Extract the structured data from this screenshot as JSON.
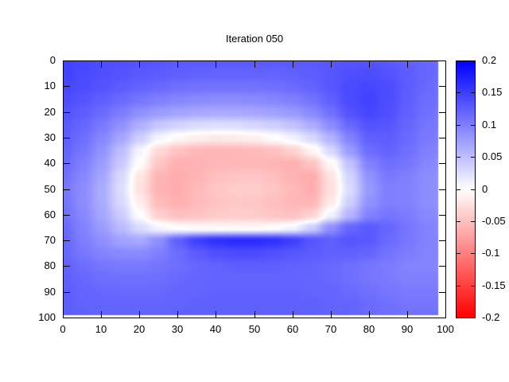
{
  "title": "Iteration 050",
  "colors": {
    "background": "#ffffff",
    "frame": "#000000",
    "text": "#000000",
    "palette_positive_max": "#0000ff",
    "palette_zero": "#ffffff",
    "palette_negative_max": "#ff0000"
  },
  "chart_data": {
    "type": "heatmap",
    "title": "Iteration 050",
    "xlabel": "",
    "ylabel": "",
    "x_range": [
      0,
      100
    ],
    "y_range": [
      0,
      100
    ],
    "y_axis_inverted": true,
    "grid": false,
    "x_tick_values": [
      0,
      10,
      20,
      30,
      40,
      50,
      60,
      70,
      80,
      90,
      100
    ],
    "x_tick_labels": [
      "0",
      "10",
      "20",
      "30",
      "40",
      "50",
      "60",
      "70",
      "80",
      "90",
      "100"
    ],
    "y_tick_values": [
      0,
      10,
      20,
      30,
      40,
      50,
      60,
      70,
      80,
      90,
      100
    ],
    "y_tick_labels": [
      "0",
      "10",
      "20",
      "30",
      "40",
      "50",
      "60",
      "70",
      "80",
      "90",
      "100"
    ],
    "data_extent": {
      "x_max_filled": 98.2,
      "y_max_filled": 99.2
    },
    "colorbar": {
      "position": "right",
      "min": -0.2,
      "max": 0.2,
      "tick_values": [
        0.2,
        0.15,
        0.1,
        0.05,
        0,
        -0.05,
        -0.1,
        -0.15,
        -0.2
      ],
      "tick_labels": [
        "0.2",
        "0.15",
        "0.1",
        "0.05",
        "0",
        "-0.05",
        "-0.1",
        "-0.15",
        "-0.2"
      ],
      "palette": "blue-white-red"
    },
    "grid_x": [
      0,
      5,
      10,
      15,
      20,
      25,
      30,
      35,
      40,
      45,
      50,
      55,
      60,
      65,
      70,
      75,
      80,
      85,
      90,
      95,
      100
    ],
    "grid_y": [
      0,
      5,
      10,
      15,
      20,
      25,
      30,
      35,
      40,
      45,
      50,
      55,
      60,
      65,
      70,
      75,
      80,
      85,
      90,
      95,
      100
    ],
    "values": [
      [
        0.15,
        0.145,
        0.14,
        0.138,
        0.135,
        0.133,
        0.13,
        0.13,
        0.13,
        0.13,
        0.13,
        0.13,
        0.13,
        0.13,
        0.132,
        0.134,
        0.135,
        0.13,
        0.125,
        0.12,
        0.115
      ],
      [
        0.148,
        0.143,
        0.138,
        0.134,
        0.13,
        0.128,
        0.125,
        0.123,
        0.122,
        0.122,
        0.122,
        0.122,
        0.124,
        0.127,
        0.132,
        0.138,
        0.14,
        0.135,
        0.127,
        0.12,
        0.115
      ],
      [
        0.145,
        0.14,
        0.134,
        0.128,
        0.122,
        0.118,
        0.113,
        0.11,
        0.11,
        0.11,
        0.11,
        0.112,
        0.116,
        0.122,
        0.132,
        0.142,
        0.145,
        0.14,
        0.128,
        0.118,
        0.112
      ],
      [
        0.14,
        0.134,
        0.126,
        0.117,
        0.108,
        0.1,
        0.095,
        0.092,
        0.09,
        0.09,
        0.092,
        0.095,
        0.1,
        0.11,
        0.125,
        0.142,
        0.148,
        0.14,
        0.126,
        0.115,
        0.11
      ],
      [
        0.135,
        0.127,
        0.116,
        0.103,
        0.088,
        0.078,
        0.072,
        0.068,
        0.067,
        0.067,
        0.07,
        0.074,
        0.08,
        0.092,
        0.112,
        0.135,
        0.145,
        0.138,
        0.124,
        0.112,
        0.107
      ],
      [
        0.13,
        0.12,
        0.105,
        0.086,
        0.063,
        0.044,
        0.034,
        0.028,
        0.026,
        0.027,
        0.032,
        0.038,
        0.048,
        0.064,
        0.09,
        0.118,
        0.135,
        0.132,
        0.12,
        0.108,
        0.103
      ],
      [
        0.127,
        0.114,
        0.095,
        0.07,
        0.038,
        0.008,
        -0.006,
        -0.014,
        -0.018,
        -0.016,
        -0.012,
        -0.002,
        0.01,
        0.03,
        0.06,
        0.098,
        0.125,
        0.127,
        0.117,
        0.105,
        0.1
      ],
      [
        0.122,
        0.108,
        0.085,
        0.052,
        0.008,
        -0.03,
        -0.048,
        -0.056,
        -0.058,
        -0.057,
        -0.054,
        -0.05,
        -0.036,
        -0.01,
        0.03,
        0.078,
        0.115,
        0.122,
        0.113,
        0.1,
        0.095
      ],
      [
        0.118,
        0.1,
        0.078,
        0.042,
        -0.002,
        -0.046,
        -0.062,
        -0.06,
        -0.057,
        -0.055,
        -0.056,
        -0.058,
        -0.062,
        -0.046,
        -0.006,
        0.048,
        0.098,
        0.113,
        0.108,
        0.095,
        0.09
      ],
      [
        0.112,
        0.094,
        0.07,
        0.03,
        -0.02,
        -0.058,
        -0.065,
        -0.058,
        -0.05,
        -0.046,
        -0.045,
        -0.05,
        -0.06,
        -0.065,
        -0.022,
        0.034,
        0.085,
        0.105,
        0.1,
        0.09,
        0.085
      ],
      [
        0.107,
        0.09,
        0.065,
        0.026,
        -0.024,
        -0.06,
        -0.064,
        -0.054,
        -0.045,
        -0.04,
        -0.04,
        -0.045,
        -0.055,
        -0.064,
        -0.026,
        0.028,
        0.08,
        0.1,
        0.098,
        0.09,
        0.085
      ],
      [
        0.11,
        0.09,
        0.066,
        0.03,
        -0.014,
        -0.053,
        -0.062,
        -0.054,
        -0.047,
        -0.043,
        -0.044,
        -0.05,
        -0.057,
        -0.058,
        -0.016,
        0.038,
        0.085,
        0.1,
        0.098,
        0.09,
        0.085
      ],
      [
        0.113,
        0.094,
        0.07,
        0.04,
        0.0,
        -0.038,
        -0.05,
        -0.047,
        -0.042,
        -0.04,
        -0.041,
        -0.045,
        -0.049,
        -0.035,
        0.01,
        0.058,
        0.098,
        0.108,
        0.103,
        0.093,
        0.088
      ],
      [
        0.118,
        0.098,
        0.078,
        0.054,
        0.028,
        0.008,
        -0.002,
        -0.006,
        -0.006,
        -0.006,
        -0.006,
        -0.002,
        0.008,
        0.038,
        0.088,
        0.12,
        0.13,
        0.12,
        0.108,
        0.098,
        0.092
      ],
      [
        0.12,
        0.102,
        0.088,
        0.073,
        0.068,
        0.088,
        0.125,
        0.15,
        0.162,
        0.166,
        0.166,
        0.162,
        0.15,
        0.133,
        0.125,
        0.133,
        0.13,
        0.117,
        0.107,
        0.098,
        0.096
      ],
      [
        0.12,
        0.107,
        0.097,
        0.092,
        0.092,
        0.1,
        0.115,
        0.128,
        0.137,
        0.141,
        0.141,
        0.137,
        0.132,
        0.128,
        0.124,
        0.124,
        0.12,
        0.11,
        0.102,
        0.097,
        0.096
      ],
      [
        0.124,
        0.115,
        0.108,
        0.105,
        0.105,
        0.109,
        0.114,
        0.119,
        0.123,
        0.126,
        0.126,
        0.126,
        0.123,
        0.122,
        0.118,
        0.113,
        0.108,
        0.103,
        0.097,
        0.096,
        0.096
      ],
      [
        0.125,
        0.119,
        0.114,
        0.113,
        0.113,
        0.114,
        0.118,
        0.121,
        0.122,
        0.122,
        0.122,
        0.122,
        0.122,
        0.121,
        0.118,
        0.113,
        0.108,
        0.104,
        0.1,
        0.1,
        0.1
      ],
      [
        0.127,
        0.122,
        0.119,
        0.118,
        0.118,
        0.118,
        0.121,
        0.122,
        0.124,
        0.124,
        0.124,
        0.124,
        0.124,
        0.122,
        0.121,
        0.117,
        0.112,
        0.108,
        0.104,
        0.104,
        0.104
      ],
      [
        0.127,
        0.123,
        0.122,
        0.122,
        0.122,
        0.122,
        0.122,
        0.125,
        0.125,
        0.125,
        0.125,
        0.125,
        0.125,
        0.125,
        0.122,
        0.122,
        0.117,
        0.112,
        0.108,
        0.108,
        0.108
      ],
      [
        0.127,
        0.125,
        0.122,
        0.122,
        0.122,
        0.122,
        0.125,
        0.125,
        0.125,
        0.125,
        0.125,
        0.125,
        0.125,
        0.125,
        0.122,
        0.122,
        0.117,
        0.112,
        0.112,
        0.112,
        0.112
      ]
    ]
  }
}
